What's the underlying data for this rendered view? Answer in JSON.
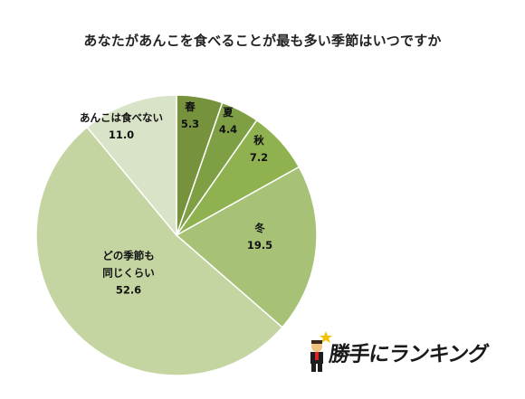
{
  "chart_data": {
    "type": "pie",
    "title": "あなたがあんこを食べることが最も多い季節はいつですか",
    "slices": [
      {
        "label": "春",
        "value": 5.3,
        "value_text": "5.3",
        "color": "#76923c"
      },
      {
        "label": "夏",
        "value": 4.4,
        "value_text": "4.4",
        "color": "#7f9f45"
      },
      {
        "label": "秋",
        "value": 7.2,
        "value_text": "7.2",
        "color": "#90b150"
      },
      {
        "label": "冬",
        "value": 19.5,
        "value_text": "19.5",
        "color": "#a7c276"
      },
      {
        "label": "どの季節も同じくらい",
        "label_lines": [
          "どの季節も",
          "同じくらい"
        ],
        "value": 52.6,
        "value_text": "52.6",
        "color": "#c4d5a1"
      },
      {
        "label": "あんこは食べない",
        "value": 11.0,
        "value_text": "11.0",
        "color": "#d9e3c7"
      }
    ]
  },
  "logo": {
    "text": "勝手にランキング"
  }
}
